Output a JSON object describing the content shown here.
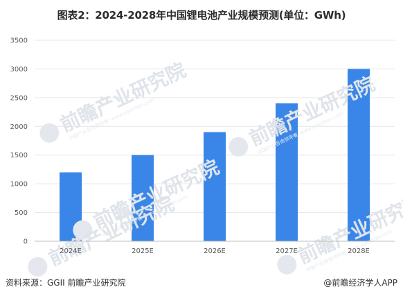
{
  "title": "图表2：2024-2028年中国锂电池产业规模预测(单位：GWh)",
  "watermark": {
    "brand": "前瞻产业研究院",
    "sub": "中国产业咨询领导者 ·www.qianzhan.com·"
  },
  "footer": {
    "source": "资料来源：GGII 前瞻产业研究院",
    "credit": "@前瞻经济学人APP"
  },
  "colors": {
    "bar": "#3a86e8",
    "grid": "#e6e6e6",
    "axis": "#bfbfbf"
  },
  "chart_data": {
    "type": "bar",
    "title": "图表2：2024-2028年中国锂电池产业规模预测(单位：GWh)",
    "categories": [
      "2024E",
      "2025E",
      "2026E",
      "2027E",
      "2028E"
    ],
    "values": [
      1200,
      1500,
      1900,
      2400,
      3000
    ],
    "ylim": [
      0,
      3500
    ],
    "yticks": [
      0,
      500,
      1000,
      1500,
      2000,
      2500,
      3000,
      3500
    ],
    "grid": true,
    "legend": "none"
  }
}
